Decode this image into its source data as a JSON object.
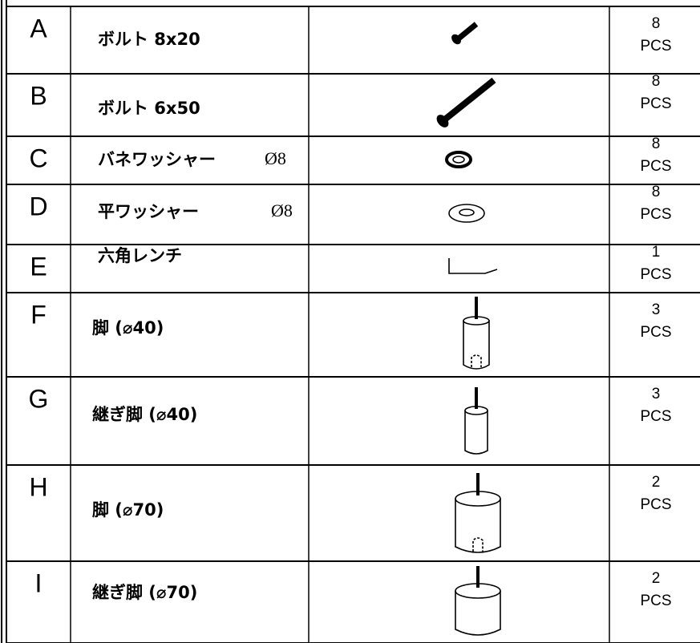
{
  "table": {
    "rows": [
      {
        "letter": "A",
        "name": "ボルト 8x20",
        "qty": 8,
        "unit": "PCS"
      },
      {
        "letter": "B",
        "name": "ボルト 6x50",
        "qty": 8,
        "unit": "PCS"
      },
      {
        "letter": "C",
        "name": "バネワッシャー",
        "size": "Ø8",
        "qty": 8,
        "unit": "PCS"
      },
      {
        "letter": "D",
        "name": "平ワッシャー",
        "size": "Ø8",
        "qty": 8,
        "unit": "PCS"
      },
      {
        "letter": "E",
        "name": "六角レンチ",
        "qty": 1,
        "unit": "PCS"
      },
      {
        "letter": "F",
        "name": "脚 (⌀40)",
        "qty": 3,
        "unit": "PCS"
      },
      {
        "letter": "G",
        "name": "継ぎ脚 (⌀40)",
        "qty": 3,
        "unit": "PCS"
      },
      {
        "letter": "H",
        "name": "脚 (⌀70)",
        "qty": 2,
        "unit": "PCS"
      },
      {
        "letter": "I",
        "name": "継ぎ脚 (⌀70)",
        "qty": 2,
        "unit": "PCS"
      }
    ]
  }
}
